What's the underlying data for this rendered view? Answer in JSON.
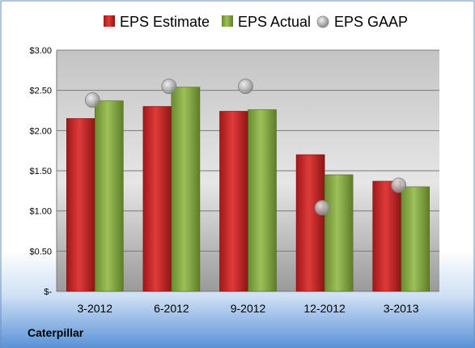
{
  "company": "Caterpillar",
  "legend": {
    "estimate": "EPS Estimate",
    "actual": "EPS Actual",
    "gaap": "EPS GAAP"
  },
  "colors": {
    "estimate": "#d42a2a",
    "actual": "#8cb04a",
    "gaap": "#a8a8a8"
  },
  "chart_data": {
    "type": "bar",
    "categories": [
      "3-2012",
      "6-2012",
      "9-2012",
      "12-2012",
      "3-2013"
    ],
    "series": [
      {
        "name": "EPS Estimate",
        "values": [
          2.15,
          2.3,
          2.24,
          1.7,
          1.37
        ]
      },
      {
        "name": "EPS Actual",
        "values": [
          2.37,
          2.54,
          2.26,
          1.45,
          1.3
        ]
      },
      {
        "name": "EPS GAAP",
        "type": "scatter",
        "values": [
          2.38,
          2.55,
          2.55,
          1.04,
          1.32
        ]
      }
    ],
    "ylim": [
      0,
      3.0
    ],
    "yticks": [
      0,
      0.5,
      1.0,
      1.5,
      2.0,
      2.5,
      3.0
    ],
    "ytick_labels": [
      "$-",
      "$0.50",
      "$1.00",
      "$1.50",
      "$2.00",
      "$2.50",
      "$3.00"
    ],
    "grid": true,
    "legend_position": "top"
  }
}
